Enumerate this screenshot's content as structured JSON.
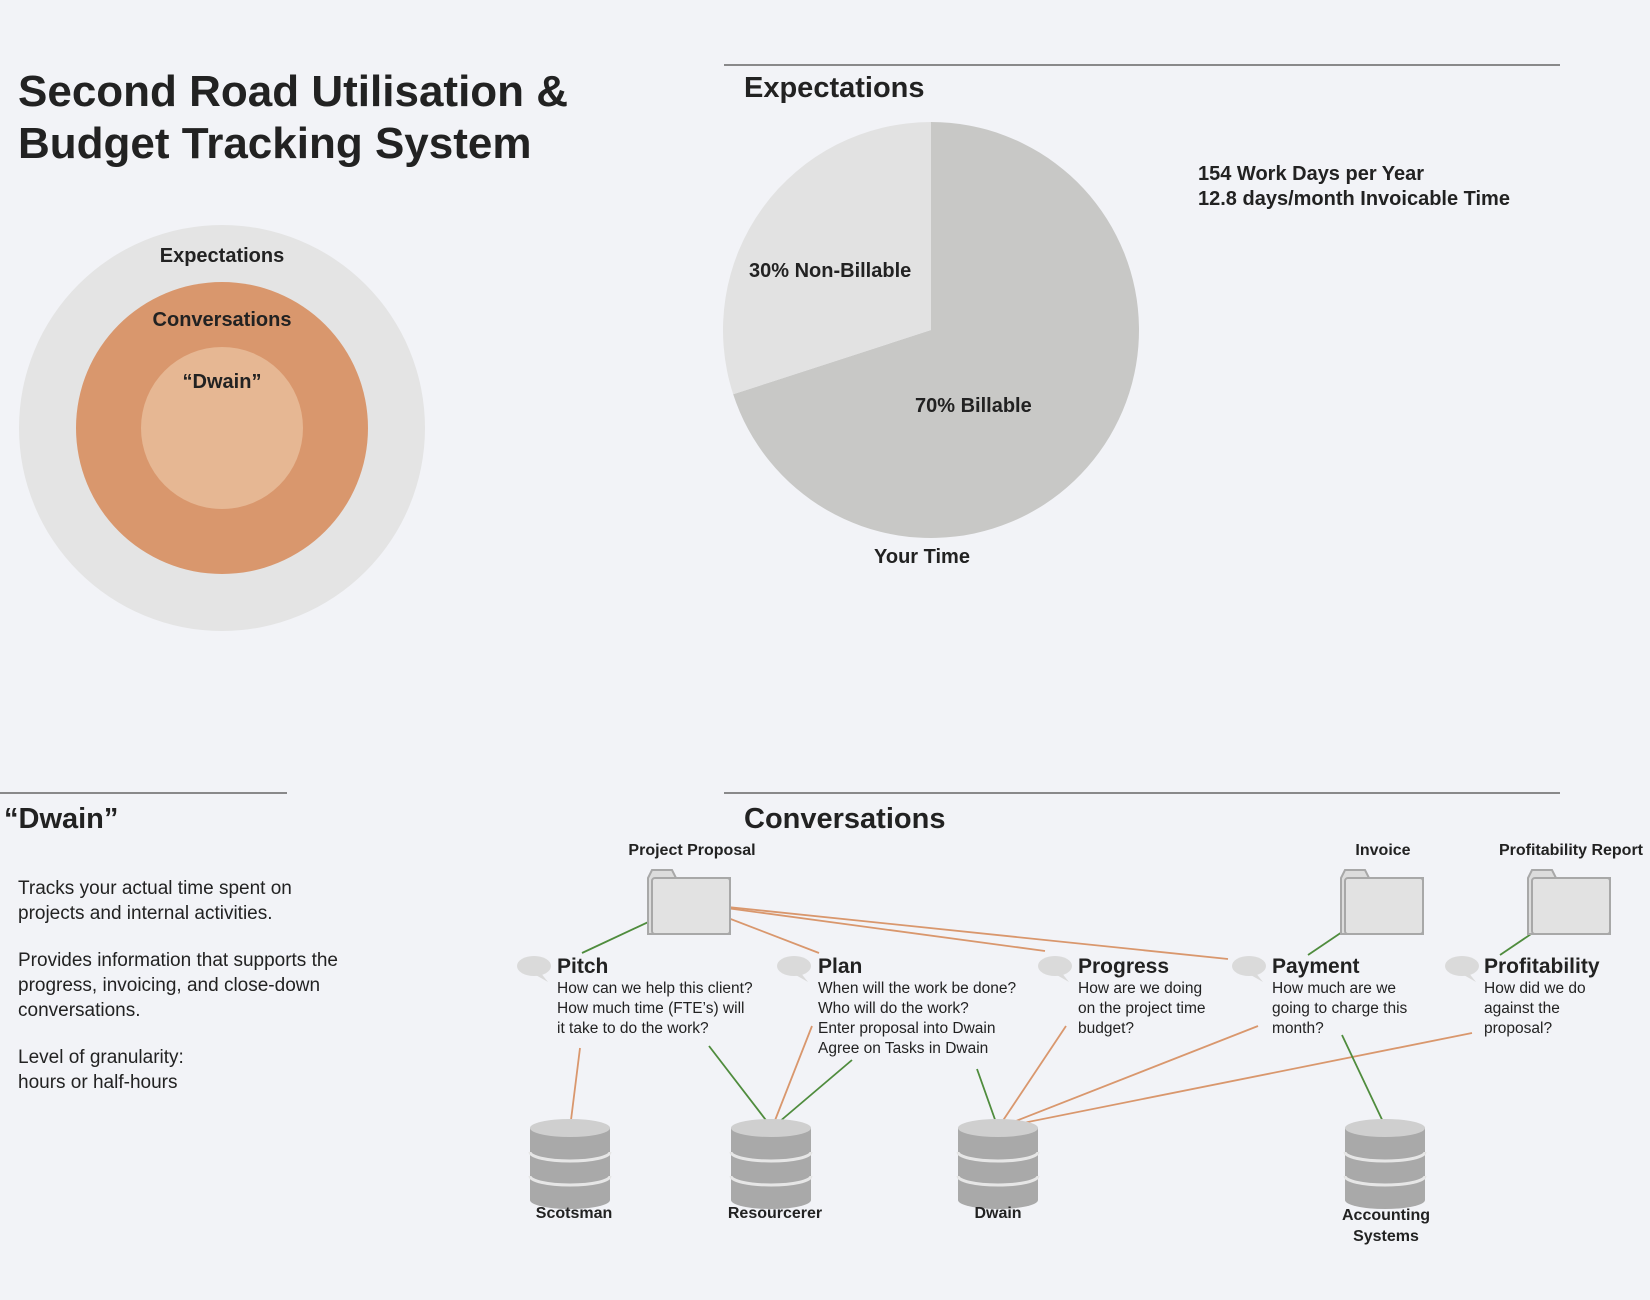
{
  "title": "Second Road Utilisation & Budget Tracking System",
  "circles": {
    "outer": "Expectations",
    "middle": "Conversations",
    "inner": "“Dwain”",
    "colors": {
      "outer": "#e4e4e4",
      "middle": "#d9976d",
      "inner": "#e6b793"
    }
  },
  "expectations": {
    "heading": "Expectations",
    "stats": [
      "154 Work Days per Year",
      "12.8 days/month Invoicable Time"
    ],
    "pie_caption": "Your Time"
  },
  "chart_data": {
    "type": "pie",
    "title": "",
    "slices": [
      {
        "label": "70% Billable",
        "value": 70,
        "color": "#c8c8c6"
      },
      {
        "label": "30% Non-Billable",
        "value": 30,
        "color": "#e2e2e2"
      }
    ]
  },
  "dwain": {
    "heading": "“Dwain”",
    "paragraphs": [
      "Tracks your actual time spent on projects and internal activities.",
      "Provides information that supports the progress, invoicing, and close-down conversations.",
      "Level of granularity: hours or half-hours"
    ]
  },
  "conversations": {
    "heading": "Conversations",
    "documents": [
      "Project Proposal",
      "Invoice",
      "Profitability Report"
    ],
    "items": [
      {
        "title": "Pitch",
        "lines": [
          "How can we help this client?",
          "How much time (FTE’s) will",
          "it take to do the work?"
        ]
      },
      {
        "title": "Plan",
        "lines": [
          "When will the work be done?",
          "Who will do the work?",
          "Enter proposal into Dwain",
          "Agree on Tasks in Dwain"
        ]
      },
      {
        "title": "Progress",
        "lines": [
          "How are we doing",
          "on the project time",
          "budget?"
        ]
      },
      {
        "title": "Payment",
        "lines": [
          "How much are we",
          "going to charge this",
          "month?"
        ]
      },
      {
        "title": "Profitability",
        "lines": [
          "How did we do",
          "against the",
          "proposal?"
        ]
      }
    ],
    "systems": [
      "Scotsman",
      "Resourcerer",
      "Dwain",
      "Accounting",
      "Systems"
    ],
    "line_colors": {
      "orange": "#d9976d",
      "green": "#4f8c3d"
    }
  }
}
